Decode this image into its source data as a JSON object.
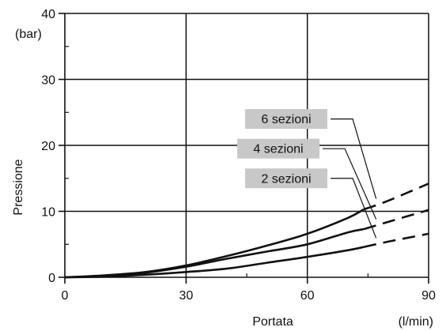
{
  "chart_data": {
    "type": "line",
    "title": "",
    "xlabel": "Portata",
    "ylabel": "Pressione",
    "x_unit": "(l/min)",
    "y_unit": "(bar)",
    "xlim": [
      0,
      90
    ],
    "ylim": [
      0,
      40
    ],
    "x_ticks": [
      0,
      30,
      60,
      90
    ],
    "x_tick_labels": [
      "0",
      "30",
      "60",
      "90"
    ],
    "y_ticks": [
      0,
      10,
      20,
      30,
      40
    ],
    "y_tick_labels": [
      "0",
      "10",
      "20",
      "30",
      "40"
    ],
    "grid": true,
    "colors": {
      "line": "#111111",
      "legend_box": "#c8c8c8"
    },
    "series": [
      {
        "name": "2 sezioni",
        "label_x": 9,
        "label_y": 15,
        "solid_to_x": 74,
        "x": [
          0,
          10,
          20,
          30,
          40,
          50,
          60,
          70,
          74,
          80,
          90
        ],
        "y": [
          0,
          0.1,
          0.4,
          0.8,
          1.3,
          2.2,
          3.1,
          4.1,
          4.6,
          5.4,
          6.6
        ]
      },
      {
        "name": "4 sezioni",
        "label_x": 9,
        "label_y": 19.5,
        "solid_to_x": 74,
        "x": [
          0,
          10,
          20,
          30,
          40,
          50,
          60,
          70,
          74,
          80,
          90
        ],
        "y": [
          0,
          0.2,
          0.7,
          1.6,
          2.8,
          3.9,
          5.0,
          6.8,
          7.3,
          8.4,
          10.2
        ]
      },
      {
        "name": "6 sezioni",
        "label_x": 9,
        "label_y": 24,
        "solid_to_x": 74,
        "x": [
          0,
          10,
          20,
          30,
          40,
          50,
          60,
          70,
          74,
          80,
          90
        ],
        "y": [
          0,
          0.3,
          0.8,
          1.8,
          3.2,
          4.8,
          6.6,
          9.0,
          10.3,
          11.6,
          14.2
        ]
      }
    ]
  }
}
